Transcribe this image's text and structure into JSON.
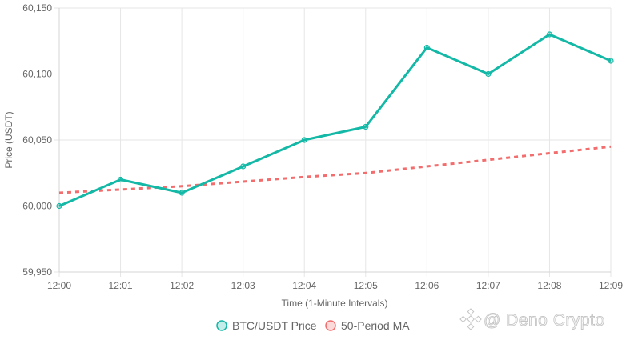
{
  "chart_data": {
    "type": "line",
    "x": [
      "12:00",
      "12:01",
      "12:02",
      "12:03",
      "12:04",
      "12:05",
      "12:06",
      "12:07",
      "12:08",
      "12:09"
    ],
    "xlabel": "Time (1-Minute Intervals)",
    "ylabel": "Price (USDT)",
    "ylim": [
      59950,
      60150
    ],
    "yticks": [
      59950,
      60000,
      60050,
      60100,
      60150
    ],
    "ytick_labels": [
      "59,950",
      "60,000",
      "60,050",
      "60,100",
      "60,150"
    ],
    "grid": true,
    "legend_position": "bottom",
    "series": [
      {
        "name": "BTC/USDT Price",
        "color": "#14b8a6",
        "style": "solid",
        "markers": true,
        "values": [
          60000,
          60020,
          60010,
          60030,
          60050,
          60060,
          60120,
          60100,
          60130,
          60110
        ]
      },
      {
        "name": "50-Period MA",
        "color": "#f26d6d",
        "style": "dashed",
        "markers": false,
        "values": [
          60010,
          60012.5,
          60015,
          60018.5,
          60022,
          60025,
          60030,
          60035,
          60040,
          60045
        ]
      }
    ]
  },
  "watermark": {
    "text": "@ Deno Crypto",
    "icon": "binance-logo-icon"
  }
}
